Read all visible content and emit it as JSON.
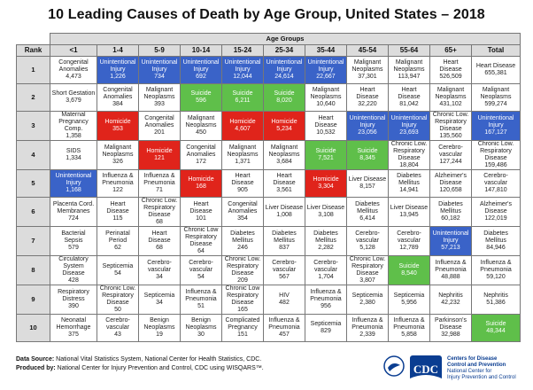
{
  "title": "10 Leading Causes of Death by Age Group, United States – 2018",
  "age_groups_label": "Age Groups",
  "columns": [
    "Rank",
    "<1",
    "1-4",
    "5-9",
    "10-14",
    "15-24",
    "25-34",
    "35-44",
    "45-54",
    "55-64",
    "65+",
    "Total"
  ],
  "colors": {
    "blue": "#3a63c8",
    "green": "#5fbf4a",
    "red": "#e0241b",
    "header_gray": "#dcdcdc"
  },
  "rows": [
    {
      "rank": "1",
      "cells": [
        {
          "cause": "Congenital Anomalies",
          "count": "4,473",
          "color": "plain"
        },
        {
          "cause": "Unintentional Injury",
          "count": "1,226",
          "color": "blue"
        },
        {
          "cause": "Unintentional Injury",
          "count": "734",
          "color": "blue"
        },
        {
          "cause": "Unintentional Injury",
          "count": "692",
          "color": "blue"
        },
        {
          "cause": "Unintentional Injury",
          "count": "12,044",
          "color": "blue"
        },
        {
          "cause": "Unintentional Injury",
          "count": "24,614",
          "color": "blue"
        },
        {
          "cause": "Unintentional Injury",
          "count": "22,667",
          "color": "blue"
        },
        {
          "cause": "Malignant Neoplasms",
          "count": "37,301",
          "color": "plain"
        },
        {
          "cause": "Malignant Neoplasms",
          "count": "113,947",
          "color": "plain"
        },
        {
          "cause": "Heart Disease",
          "count": "526,509",
          "color": "plain"
        },
        {
          "cause": "Heart Disease",
          "count": "655,381",
          "color": "plain"
        }
      ]
    },
    {
      "rank": "2",
      "cells": [
        {
          "cause": "Short Gestation",
          "count": "3,679",
          "color": "plain"
        },
        {
          "cause": "Congenital Anomalies",
          "count": "384",
          "color": "plain"
        },
        {
          "cause": "Malignant Neoplasms",
          "count": "393",
          "color": "plain"
        },
        {
          "cause": "Suicide",
          "count": "596",
          "color": "green"
        },
        {
          "cause": "Suicide",
          "count": "6,211",
          "color": "green"
        },
        {
          "cause": "Suicide",
          "count": "8,020",
          "color": "green"
        },
        {
          "cause": "Malignant Neoplasms",
          "count": "10,640",
          "color": "plain"
        },
        {
          "cause": "Heart Disease",
          "count": "32,220",
          "color": "plain"
        },
        {
          "cause": "Heart Disease",
          "count": "81,042",
          "color": "plain"
        },
        {
          "cause": "Malignant Neoplasms",
          "count": "431,102",
          "color": "plain"
        },
        {
          "cause": "Malignant Neoplasms",
          "count": "599,274",
          "color": "plain"
        }
      ]
    },
    {
      "rank": "3",
      "cells": [
        {
          "cause": "Maternal Pregnancy Comp.",
          "count": "1,358",
          "color": "plain"
        },
        {
          "cause": "Homicide",
          "count": "353",
          "color": "red"
        },
        {
          "cause": "Congenital Anomalies",
          "count": "201",
          "color": "plain"
        },
        {
          "cause": "Malignant Neoplasms",
          "count": "450",
          "color": "plain"
        },
        {
          "cause": "Homicide",
          "count": "4,607",
          "color": "red"
        },
        {
          "cause": "Homicide",
          "count": "5,234",
          "color": "red"
        },
        {
          "cause": "Heart Disease",
          "count": "10,532",
          "color": "plain"
        },
        {
          "cause": "Unintentional Injury",
          "count": "23,056",
          "color": "blue"
        },
        {
          "cause": "Unintentional Injury",
          "count": "23,693",
          "color": "blue"
        },
        {
          "cause": "Chronic Low. Respiratory Disease",
          "count": "135,560",
          "color": "plain"
        },
        {
          "cause": "Unintentional Injury",
          "count": "167,127",
          "color": "blue"
        }
      ]
    },
    {
      "rank": "4",
      "cells": [
        {
          "cause": "SIDS",
          "count": "1,334",
          "color": "plain"
        },
        {
          "cause": "Malignant Neoplasms",
          "count": "326",
          "color": "plain"
        },
        {
          "cause": "Homicide",
          "count": "121",
          "color": "red"
        },
        {
          "cause": "Congenital Anomalies",
          "count": "172",
          "color": "plain"
        },
        {
          "cause": "Malignant Neoplasms",
          "count": "1,371",
          "color": "plain"
        },
        {
          "cause": "Malignant Neoplasms",
          "count": "3,684",
          "color": "plain"
        },
        {
          "cause": "Suicide",
          "count": "7,521",
          "color": "green"
        },
        {
          "cause": "Suicide",
          "count": "8,345",
          "color": "green"
        },
        {
          "cause": "Chronic Low. Respiratory Disease",
          "count": "18,804",
          "color": "plain"
        },
        {
          "cause": "Cerebro-vascular",
          "count": "127,244",
          "color": "plain"
        },
        {
          "cause": "Chronic Low. Respiratory Disease",
          "count": "159,486",
          "color": "plain"
        }
      ]
    },
    {
      "rank": "5",
      "cells": [
        {
          "cause": "Unintentional Injury",
          "count": "1,168",
          "color": "blue"
        },
        {
          "cause": "Influenza & Pneumonia",
          "count": "122",
          "color": "plain"
        },
        {
          "cause": "Influenza & Pneumonia",
          "count": "71",
          "color": "plain"
        },
        {
          "cause": "Homicide",
          "count": "168",
          "color": "red"
        },
        {
          "cause": "Heart Disease",
          "count": "905",
          "color": "plain"
        },
        {
          "cause": "Heart Disease",
          "count": "3,561",
          "color": "plain"
        },
        {
          "cause": "Homicide",
          "count": "3,304",
          "color": "red"
        },
        {
          "cause": "Liver Disease",
          "count": "8,157",
          "color": "plain"
        },
        {
          "cause": "Diabetes Mellitus",
          "count": "14,941",
          "color": "plain"
        },
        {
          "cause": "Alzheimer's Disease",
          "count": "120,658",
          "color": "plain"
        },
        {
          "cause": "Cerebro-vascular",
          "count": "147,810",
          "color": "plain"
        }
      ]
    },
    {
      "rank": "6",
      "cells": [
        {
          "cause": "Placenta Cord. Membranes",
          "count": "724",
          "color": "plain"
        },
        {
          "cause": "Heart Disease",
          "count": "115",
          "color": "plain"
        },
        {
          "cause": "Chronic Low. Respiratory Disease",
          "count": "68",
          "color": "plain"
        },
        {
          "cause": "Heart Disease",
          "count": "101",
          "color": "plain"
        },
        {
          "cause": "Congenital Anomalies",
          "count": "354",
          "color": "plain"
        },
        {
          "cause": "Liver Disease",
          "count": "1,008",
          "color": "plain"
        },
        {
          "cause": "Liver Disease",
          "count": "3,108",
          "color": "plain"
        },
        {
          "cause": "Diabetes Mellitus",
          "count": "6,414",
          "color": "plain"
        },
        {
          "cause": "Liver Disease",
          "count": "13,945",
          "color": "plain"
        },
        {
          "cause": "Diabetes Mellitus",
          "count": "60,182",
          "color": "plain"
        },
        {
          "cause": "Alzheimer's Disease",
          "count": "122,019",
          "color": "plain"
        }
      ]
    },
    {
      "rank": "7",
      "cells": [
        {
          "cause": "Bacterial Sepsis",
          "count": "579",
          "color": "plain"
        },
        {
          "cause": "Perinatal Period",
          "count": "62",
          "color": "plain"
        },
        {
          "cause": "Heart Disease",
          "count": "68",
          "color": "plain"
        },
        {
          "cause": "Chronic Low Respiratory Disease",
          "count": "64",
          "color": "plain"
        },
        {
          "cause": "Diabetes Mellitus",
          "count": "246",
          "color": "plain"
        },
        {
          "cause": "Diabetes Mellitus",
          "count": "837",
          "color": "plain"
        },
        {
          "cause": "Diabetes Mellitus",
          "count": "2,282",
          "color": "plain"
        },
        {
          "cause": "Cerebro-vascular",
          "count": "5,128",
          "color": "plain"
        },
        {
          "cause": "Cerebro-vascular",
          "count": "12,789",
          "color": "plain"
        },
        {
          "cause": "Unintentional Injury",
          "count": "57,213",
          "color": "blue"
        },
        {
          "cause": "Diabetes Mellitus",
          "count": "84,946",
          "color": "plain"
        }
      ]
    },
    {
      "rank": "8",
      "cells": [
        {
          "cause": "Circulatory System Disease",
          "count": "428",
          "color": "plain"
        },
        {
          "cause": "Septicemia",
          "count": "54",
          "color": "plain"
        },
        {
          "cause": "Cerebro-vascular",
          "count": "34",
          "color": "plain"
        },
        {
          "cause": "Cerebro-vascular",
          "count": "54",
          "color": "plain"
        },
        {
          "cause": "Chronic Low. Respiratory Disease",
          "count": "209",
          "color": "plain"
        },
        {
          "cause": "Cerebro-vascular",
          "count": "567",
          "color": "plain"
        },
        {
          "cause": "Cerebro-vascular",
          "count": "1,704",
          "color": "plain"
        },
        {
          "cause": "Chronic Low. Respiratory Disease",
          "count": "3,807",
          "color": "plain"
        },
        {
          "cause": "Suicide",
          "count": "8,540",
          "color": "green"
        },
        {
          "cause": "Influenza & Pneumonia",
          "count": "48,888",
          "color": "plain"
        },
        {
          "cause": "Influenza & Pneumonia",
          "count": "59,120",
          "color": "plain"
        }
      ]
    },
    {
      "rank": "9",
      "cells": [
        {
          "cause": "Respiratory Distress",
          "count": "390",
          "color": "plain"
        },
        {
          "cause": "Chronic Low. Respiratory Disease",
          "count": "50",
          "color": "plain"
        },
        {
          "cause": "Septicemia",
          "count": "34",
          "color": "plain"
        },
        {
          "cause": "Influenza & Pneumonia",
          "count": "51",
          "color": "plain"
        },
        {
          "cause": "Chronic Low Respiratory Disease",
          "count": "165",
          "color": "plain"
        },
        {
          "cause": "HIV",
          "count": "482",
          "color": "plain"
        },
        {
          "cause": "Influenza & Pneumonia",
          "count": "956",
          "color": "plain"
        },
        {
          "cause": "Septicemia",
          "count": "2,380",
          "color": "plain"
        },
        {
          "cause": "Septicemia",
          "count": "5,956",
          "color": "plain"
        },
        {
          "cause": "Nephritis",
          "count": "42,232",
          "color": "plain"
        },
        {
          "cause": "Nephritis",
          "count": "51,386",
          "color": "plain"
        }
      ]
    },
    {
      "rank": "10",
      "cells": [
        {
          "cause": "Neonatal Hemorrhage",
          "count": "375",
          "color": "plain"
        },
        {
          "cause": "Cerebro-vascular",
          "count": "43",
          "color": "plain"
        },
        {
          "cause": "Benign Neoplasms",
          "count": "19",
          "color": "plain"
        },
        {
          "cause": "Benign Neoplasms",
          "count": "30",
          "color": "plain"
        },
        {
          "cause": "Complicated Pregnancy",
          "count": "151",
          "color": "plain"
        },
        {
          "cause": "Influenza & Pneumonia",
          "count": "457",
          "color": "plain"
        },
        {
          "cause": "Septicemia",
          "count": "829",
          "color": "plain"
        },
        {
          "cause": "Influenza & Pneumonia",
          "count": "2,339",
          "color": "plain"
        },
        {
          "cause": "Influenza & Pneumonia",
          "count": "5,858",
          "color": "plain"
        },
        {
          "cause": "Parkinson's Disease",
          "count": "32,988",
          "color": "plain"
        },
        {
          "cause": "Suicide",
          "count": "48,344",
          "color": "green"
        }
      ]
    }
  ],
  "footer": {
    "source_label": "Data Source:",
    "source_text": " National Vital Statistics System, National Center for Health Statistics, CDC.",
    "produced_label": "Produced by:",
    "produced_text": " National Center for Injury Prevention and Control, CDC using WISQARS™."
  },
  "cdc": {
    "logo_text": "CDC",
    "line1": "Centers for Disease",
    "line2": "Control and Prevention",
    "line3": "National Center for",
    "line4": "Injury Prevention and Control"
  }
}
